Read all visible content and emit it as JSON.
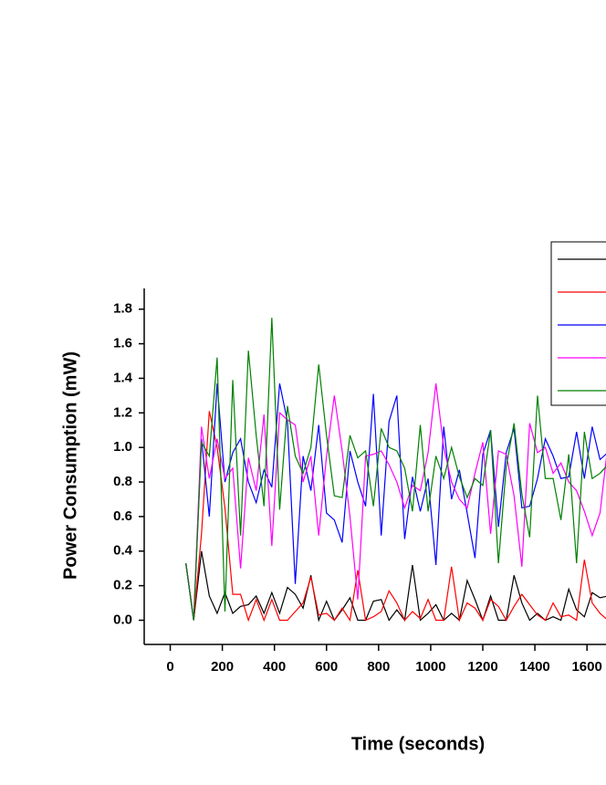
{
  "chart_data": {
    "type": "line",
    "x_label": "Time (seconds)",
    "y_label": "Power Consumption (mW)",
    "x": [
      60,
      90,
      120,
      150,
      180,
      210,
      240,
      270,
      300,
      330,
      360,
      390,
      420,
      450,
      480,
      510,
      540,
      570,
      600,
      630,
      660,
      690,
      720,
      750,
      780,
      810,
      840,
      870,
      900,
      930,
      960,
      990,
      1020,
      1050,
      1080,
      1110,
      1140,
      1170,
      1200,
      1230,
      1260,
      1290,
      1320,
      1350,
      1380,
      1410,
      1440,
      1470,
      1500,
      1530,
      1560,
      1590,
      1620,
      1650,
      1680
    ],
    "series": [
      {
        "color": "#000000",
        "values": [
          0.33,
          0.0,
          0.4,
          0.14,
          0.04,
          0.16,
          0.04,
          0.08,
          0.09,
          0.14,
          0.04,
          0.16,
          0.04,
          0.19,
          0.15,
          0.07,
          0.26,
          0.0,
          0.11,
          0.0,
          0.06,
          0.13,
          0.0,
          0.0,
          0.11,
          0.12,
          0.0,
          0.06,
          0.0,
          0.32,
          0.0,
          0.04,
          0.09,
          0.0,
          0.04,
          0.0,
          0.23,
          0.12,
          0.0,
          0.14,
          0.0,
          0.0,
          0.26,
          0.1,
          0.0,
          0.04,
          0.0,
          0.02,
          0.0,
          0.18,
          0.06,
          0.02,
          0.16,
          0.13,
          0.14
        ]
      },
      {
        "color": "#ff0000",
        "values": [
          0.33,
          0.0,
          0.5,
          1.21,
          1.0,
          0.65,
          0.15,
          0.15,
          0.0,
          0.12,
          0.0,
          0.12,
          0.0,
          0.0,
          0.05,
          0.1,
          0.25,
          0.03,
          0.04,
          0.0,
          0.07,
          0.0,
          0.29,
          0.0,
          0.02,
          0.05,
          0.17,
          0.1,
          0.0,
          0.05,
          0.01,
          0.12,
          0.0,
          0.0,
          0.31,
          0.0,
          0.1,
          0.07,
          0.0,
          0.12,
          0.08,
          0.0,
          0.08,
          0.15,
          0.09,
          0.03,
          0.0,
          0.1,
          0.02,
          0.03,
          0.0,
          0.35,
          0.1,
          0.04,
          0.0
        ]
      },
      {
        "color": "#0000ff",
        "values": [
          0.33,
          0.0,
          1.05,
          0.6,
          1.37,
          0.8,
          0.97,
          1.05,
          0.8,
          0.68,
          0.87,
          0.77,
          1.37,
          1.15,
          0.21,
          0.95,
          0.75,
          1.13,
          0.62,
          0.58,
          0.45,
          0.98,
          0.8,
          0.66,
          1.31,
          0.49,
          1.15,
          1.3,
          0.47,
          0.83,
          0.63,
          0.82,
          0.32,
          1.12,
          0.7,
          0.87,
          0.62,
          0.36,
          0.96,
          1.1,
          0.54,
          0.97,
          1.11,
          0.65,
          0.66,
          0.82,
          1.05,
          0.95,
          0.82,
          0.83,
          1.09,
          0.82,
          1.12,
          0.93,
          0.97
        ]
      },
      {
        "color": "#ff00ff",
        "values": [
          0.33,
          0.0,
          1.12,
          0.82,
          1.05,
          0.82,
          0.88,
          0.3,
          0.94,
          0.75,
          1.19,
          0.43,
          1.2,
          1.16,
          1.13,
          0.8,
          0.95,
          0.49,
          0.95,
          1.3,
          0.98,
          0.6,
          0.12,
          0.95,
          0.96,
          0.98,
          0.9,
          0.8,
          0.65,
          0.78,
          0.75,
          0.97,
          1.37,
          1.0,
          0.8,
          0.7,
          0.65,
          0.85,
          1.03,
          0.5,
          0.98,
          0.96,
          0.72,
          0.31,
          1.14,
          0.97,
          1.0,
          0.85,
          0.91,
          0.8,
          0.75,
          0.63,
          0.49,
          0.62,
          1.01
        ]
      },
      {
        "color": "#008000",
        "values": [
          0.33,
          0.0,
          1.03,
          0.95,
          1.52,
          0.05,
          1.39,
          0.49,
          1.56,
          1.07,
          0.66,
          1.75,
          0.64,
          1.24,
          0.95,
          0.85,
          1.0,
          1.48,
          1.07,
          0.72,
          0.71,
          1.07,
          0.94,
          0.98,
          0.66,
          1.11,
          1.0,
          0.98,
          0.88,
          0.63,
          1.13,
          0.63,
          0.95,
          0.82,
          1.0,
          0.83,
          0.71,
          0.82,
          0.78,
          1.1,
          0.33,
          0.89,
          1.14,
          0.73,
          0.48,
          1.3,
          0.82,
          0.82,
          0.58,
          0.96,
          0.33,
          1.09,
          0.82,
          0.85,
          0.9
        ]
      }
    ],
    "xlim": [
      -100,
      1673
    ],
    "ylim": [
      -0.14,
      1.92
    ],
    "xticks": [
      0,
      200,
      400,
      600,
      800,
      1000,
      1200,
      1400,
      1600
    ],
    "yticks": [
      {
        "value": 0.0,
        "label": "0.0"
      },
      0.2,
      0.4,
      0.6,
      0.8,
      {
        "value": 1.0,
        "label": "1.0"
      },
      1.2,
      1.4,
      1.6,
      1.8
    ],
    "grid": false
  }
}
